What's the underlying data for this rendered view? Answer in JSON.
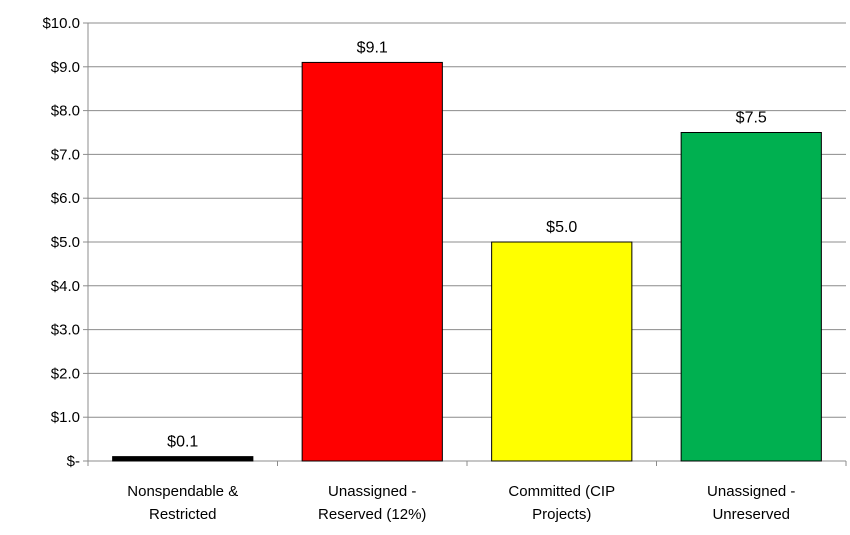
{
  "chart_data": {
    "type": "bar",
    "categories": [
      [
        "Nonspendable &",
        "Restricted"
      ],
      [
        "Unassigned -",
        "Reserved (12%)"
      ],
      [
        "Committed (CIP",
        "Projects)"
      ],
      [
        "Unassigned -",
        "Unreserved"
      ]
    ],
    "values": [
      0.1,
      9.1,
      5.0,
      7.5
    ],
    "data_labels": [
      "$0.1",
      "$9.1",
      "$5.0",
      "$7.5"
    ],
    "bar_colors": [
      "#000000",
      "#ff0000",
      "#ffff00",
      "#00b050"
    ],
    "yticks": [
      {
        "value": 0,
        "label": "$-"
      },
      {
        "value": 1,
        "label": "$1.0"
      },
      {
        "value": 2,
        "label": "$2.0"
      },
      {
        "value": 3,
        "label": "$3.0"
      },
      {
        "value": 4,
        "label": "$4.0"
      },
      {
        "value": 5,
        "label": "$5.0"
      },
      {
        "value": 6,
        "label": "$6.0"
      },
      {
        "value": 7,
        "label": "$7.0"
      },
      {
        "value": 8,
        "label": "$8.0"
      },
      {
        "value": 9,
        "label": "$9.0"
      },
      {
        "value": 10,
        "label": "$10.0"
      }
    ],
    "ylim": [
      0,
      10
    ],
    "grid": true,
    "legend": "none",
    "title": "",
    "xlabel": "",
    "ylabel": ""
  }
}
